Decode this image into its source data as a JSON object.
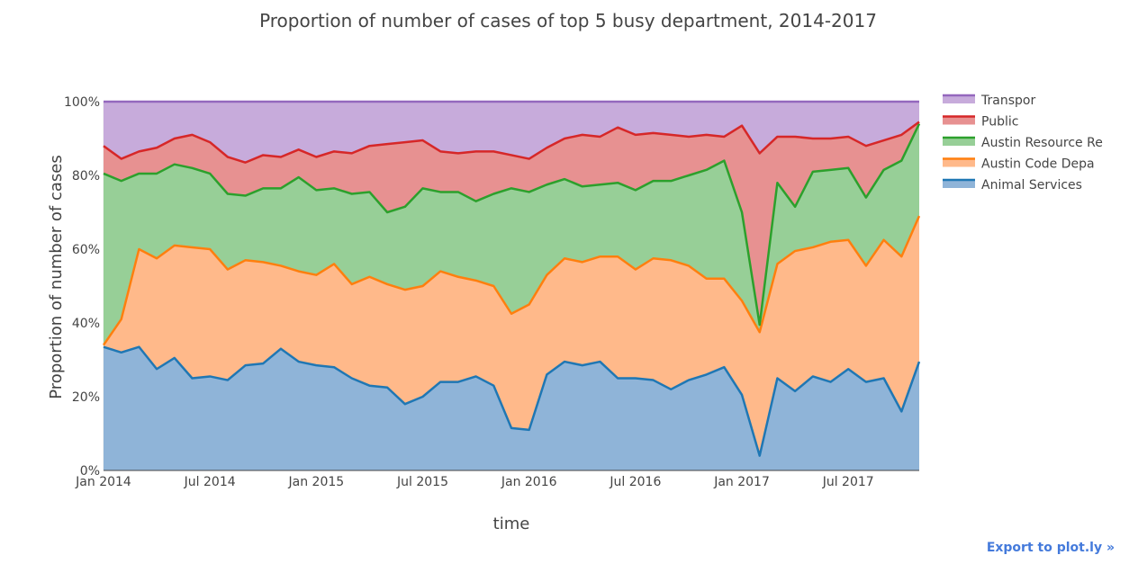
{
  "chart_data": {
    "type": "area",
    "stacked": "percent",
    "title": "Proportion of number of cases of top 5 busy department, 2014-2017",
    "xlabel": "time",
    "ylabel": "Proportion of number of cases",
    "x_start": "2014-01",
    "x_ticks": [
      {
        "label": "Jan 2014",
        "month_index": 0
      },
      {
        "label": "Jul 2014",
        "month_index": 6
      },
      {
        "label": "Jan 2015",
        "month_index": 12
      },
      {
        "label": "Jul 2015",
        "month_index": 18
      },
      {
        "label": "Jan 2016",
        "month_index": 24
      },
      {
        "label": "Jul 2016",
        "month_index": 30
      },
      {
        "label": "Jan 2017",
        "month_index": 36
      },
      {
        "label": "Jul 2017",
        "month_index": 42
      }
    ],
    "y_ticks": [
      {
        "label": "0%",
        "value": 0
      },
      {
        "label": "20%",
        "value": 20
      },
      {
        "label": "40%",
        "value": 40
      },
      {
        "label": "60%",
        "value": 60
      },
      {
        "label": "80%",
        "value": 80
      },
      {
        "label": "100%",
        "value": 100
      }
    ],
    "ylim": [
      0,
      100
    ],
    "grid": true,
    "legend_position": "right",
    "series_cumulative": [
      {
        "name": "Animal Services",
        "line_color": "#1f77b4",
        "fill_color": "#8fb4d8",
        "values": [
          33.5,
          32,
          33.5,
          27.5,
          30.5,
          25,
          25.5,
          24.5,
          28.5,
          29,
          33,
          29.5,
          28.5,
          28,
          25,
          23,
          22.5,
          18,
          20,
          24,
          24,
          25.5,
          23,
          11.5,
          11,
          26,
          29.5,
          28.5,
          29.5,
          25,
          25,
          24.5,
          22,
          24.5,
          26,
          28,
          20.5,
          4,
          25,
          21.5,
          25.5,
          24,
          27.5,
          24,
          25,
          16,
          29.5
        ]
      },
      {
        "name": "Austin Code Depa",
        "line_color": "#ff7f0e",
        "fill_color": "#ffb98a",
        "values": [
          34,
          41,
          60,
          57.5,
          61,
          60.5,
          60,
          54.5,
          57,
          56.5,
          55.5,
          54,
          53,
          56,
          50.5,
          52.5,
          50.5,
          49,
          50,
          54,
          52.5,
          51.5,
          50,
          42.5,
          45,
          53,
          57.5,
          56.5,
          58,
          58,
          54.5,
          57.5,
          57,
          55.5,
          52,
          52,
          46,
          37.5,
          56,
          59.5,
          60.5,
          62,
          62.5,
          55.5,
          62.5,
          58,
          69
        ]
      },
      {
        "name": "Austin Resource Re",
        "line_color": "#2ca02c",
        "fill_color": "#97cf97",
        "values": [
          80.5,
          78.5,
          80.5,
          80.5,
          83,
          82,
          80.5,
          75,
          74.5,
          76.5,
          76.5,
          79.5,
          76,
          76.5,
          75,
          75.5,
          70,
          71.5,
          76.5,
          75.5,
          75.5,
          73,
          75,
          76.5,
          75.5,
          77.5,
          79,
          77,
          77.5,
          78,
          76,
          78.5,
          78.5,
          80,
          81.5,
          84,
          70,
          39.5,
          78,
          71.5,
          81,
          81.5,
          82,
          74,
          81.5,
          84,
          94
        ]
      },
      {
        "name": "Public",
        "line_color": "#d62728",
        "fill_color": "#e79191",
        "values": [
          88,
          84.5,
          86.5,
          87.5,
          90,
          91,
          89,
          85,
          83.5,
          85.5,
          85,
          87,
          85,
          86.5,
          86,
          88,
          88.5,
          89,
          89.5,
          86.5,
          86,
          86.5,
          86.5,
          85.5,
          84.5,
          87.5,
          90,
          91,
          90.5,
          93,
          91,
          91.5,
          91,
          90.5,
          91,
          90.5,
          93.5,
          86,
          90.5,
          90.5,
          90,
          90,
          90.5,
          88,
          89.5,
          91,
          94.5
        ]
      },
      {
        "name": "Transpor",
        "line_color": "#9467bd",
        "fill_color": "#c7abdb",
        "values": [
          100,
          100,
          100,
          100,
          100,
          100,
          100,
          100,
          100,
          100,
          100,
          100,
          100,
          100,
          100,
          100,
          100,
          100,
          100,
          100,
          100,
          100,
          100,
          100,
          100,
          100,
          100,
          100,
          100,
          100,
          100,
          100,
          100,
          100,
          100,
          100,
          100,
          100,
          100,
          100,
          100,
          100,
          100,
          100,
          100,
          100,
          100
        ]
      }
    ],
    "legend_order": [
      "Transpor",
      "Public",
      "Austin Resource Re",
      "Austin Code Depa",
      "Animal Services"
    ]
  },
  "export_link": {
    "label": "Export to plot.ly »"
  }
}
